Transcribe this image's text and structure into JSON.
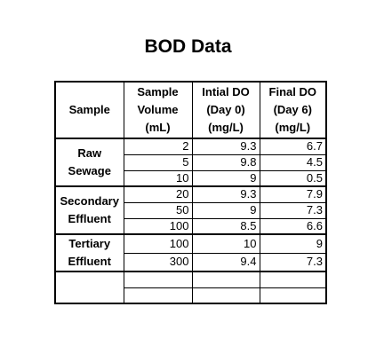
{
  "title": "BOD Data",
  "table": {
    "headers": [
      [
        "Sample"
      ],
      [
        "Sample",
        "Volume",
        "(mL)"
      ],
      [
        "Intial DO",
        "(Day 0)",
        "(mg/L)"
      ],
      [
        "Final DO",
        "(Day 6)",
        "(mg/L)"
      ]
    ],
    "groups": [
      {
        "label": [
          "Raw",
          "Sewage"
        ],
        "rows": [
          [
            "2",
            "9.3",
            "6.7"
          ],
          [
            "5",
            "9.8",
            "4.5"
          ],
          [
            "10",
            "9",
            "0.5"
          ]
        ]
      },
      {
        "label": [
          "Secondary",
          "Effluent"
        ],
        "rows": [
          [
            "20",
            "9.3",
            "7.9"
          ],
          [
            "50",
            "9",
            "7.3"
          ],
          [
            "100",
            "8.5",
            "6.6"
          ]
        ]
      },
      {
        "label": [
          "Tertiary",
          "Effluent"
        ],
        "rows": [
          [
            "100",
            "10",
            "9"
          ],
          [
            "300",
            "9.4",
            "7.3"
          ]
        ]
      }
    ]
  }
}
